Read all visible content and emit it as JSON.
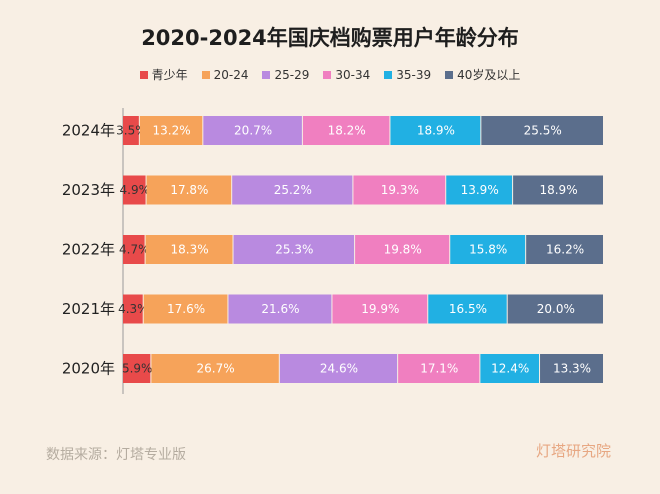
{
  "chart_data": {
    "type": "bar",
    "orientation": "horizontal",
    "stacked": true,
    "percent_stacked": true,
    "title": "2020-2024年国庆档购票用户年龄分布",
    "categories": [
      "2024年",
      "2023年",
      "2022年",
      "2021年",
      "2020年"
    ],
    "series": [
      {
        "name": "青少年",
        "color": "#e84a4a",
        "values": [
          3.5,
          4.9,
          4.7,
          4.3,
          5.9
        ],
        "labels": [
          "3.5%",
          "4.9%",
          "4.7%",
          "4.3%",
          "5.9%"
        ]
      },
      {
        "name": "20-24",
        "color": "#f6a35a",
        "values": [
          13.2,
          17.8,
          18.3,
          17.6,
          26.7
        ],
        "labels": [
          "13.2%",
          "17.8%",
          "18.3%",
          "17.6%",
          "26.7%"
        ]
      },
      {
        "name": "25-29",
        "color": "#b98ae0",
        "values": [
          20.7,
          25.2,
          25.3,
          21.6,
          24.6
        ],
        "labels": [
          "20.7%",
          "25.2%",
          "25.3%",
          "21.6%",
          "24.6%"
        ]
      },
      {
        "name": "30-34",
        "color": "#f07fc0",
        "values": [
          18.2,
          19.3,
          19.8,
          19.9,
          17.1
        ],
        "labels": [
          "18.2%",
          "19.3%",
          "19.8%",
          "19.9%",
          "17.1%"
        ]
      },
      {
        "name": "35-39",
        "color": "#21b0e3",
        "values": [
          18.9,
          13.9,
          15.8,
          16.5,
          12.4
        ],
        "labels": [
          "18.9%",
          "13.9%",
          "15.8%",
          "16.5%",
          "12.4%"
        ]
      },
      {
        "name": "40岁及以上",
        "color": "#5b6e8c",
        "values": [
          25.5,
          18.9,
          16.2,
          20.0,
          13.3
        ],
        "labels": [
          "25.5%",
          "18.9%",
          "16.2%",
          "20.0%",
          "13.3%"
        ]
      }
    ],
    "legend_position": "top",
    "grid": false
  },
  "footer": {
    "source": "数据来源：灯塔专业版",
    "logo_text": "灯塔研究院"
  }
}
